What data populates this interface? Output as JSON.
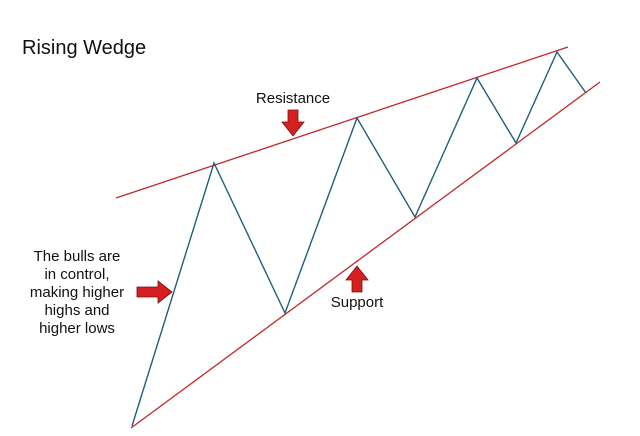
{
  "title": "Rising Wedge",
  "labels": {
    "resistance": "Resistance",
    "support": "Support",
    "bulls_note": [
      "The bulls are",
      "in control,",
      "making higher",
      "highs and",
      "higher lows"
    ]
  },
  "colors": {
    "trendline": "#c0282a",
    "price": "#1f5f7a",
    "arrow": "#d42020",
    "arrow_outline": "#7a1010",
    "text": "#111111"
  },
  "icons": {
    "resistance_arrow": "arrow-down-icon",
    "support_arrow": "arrow-up-icon",
    "bulls_arrow": "arrow-right-icon"
  }
}
